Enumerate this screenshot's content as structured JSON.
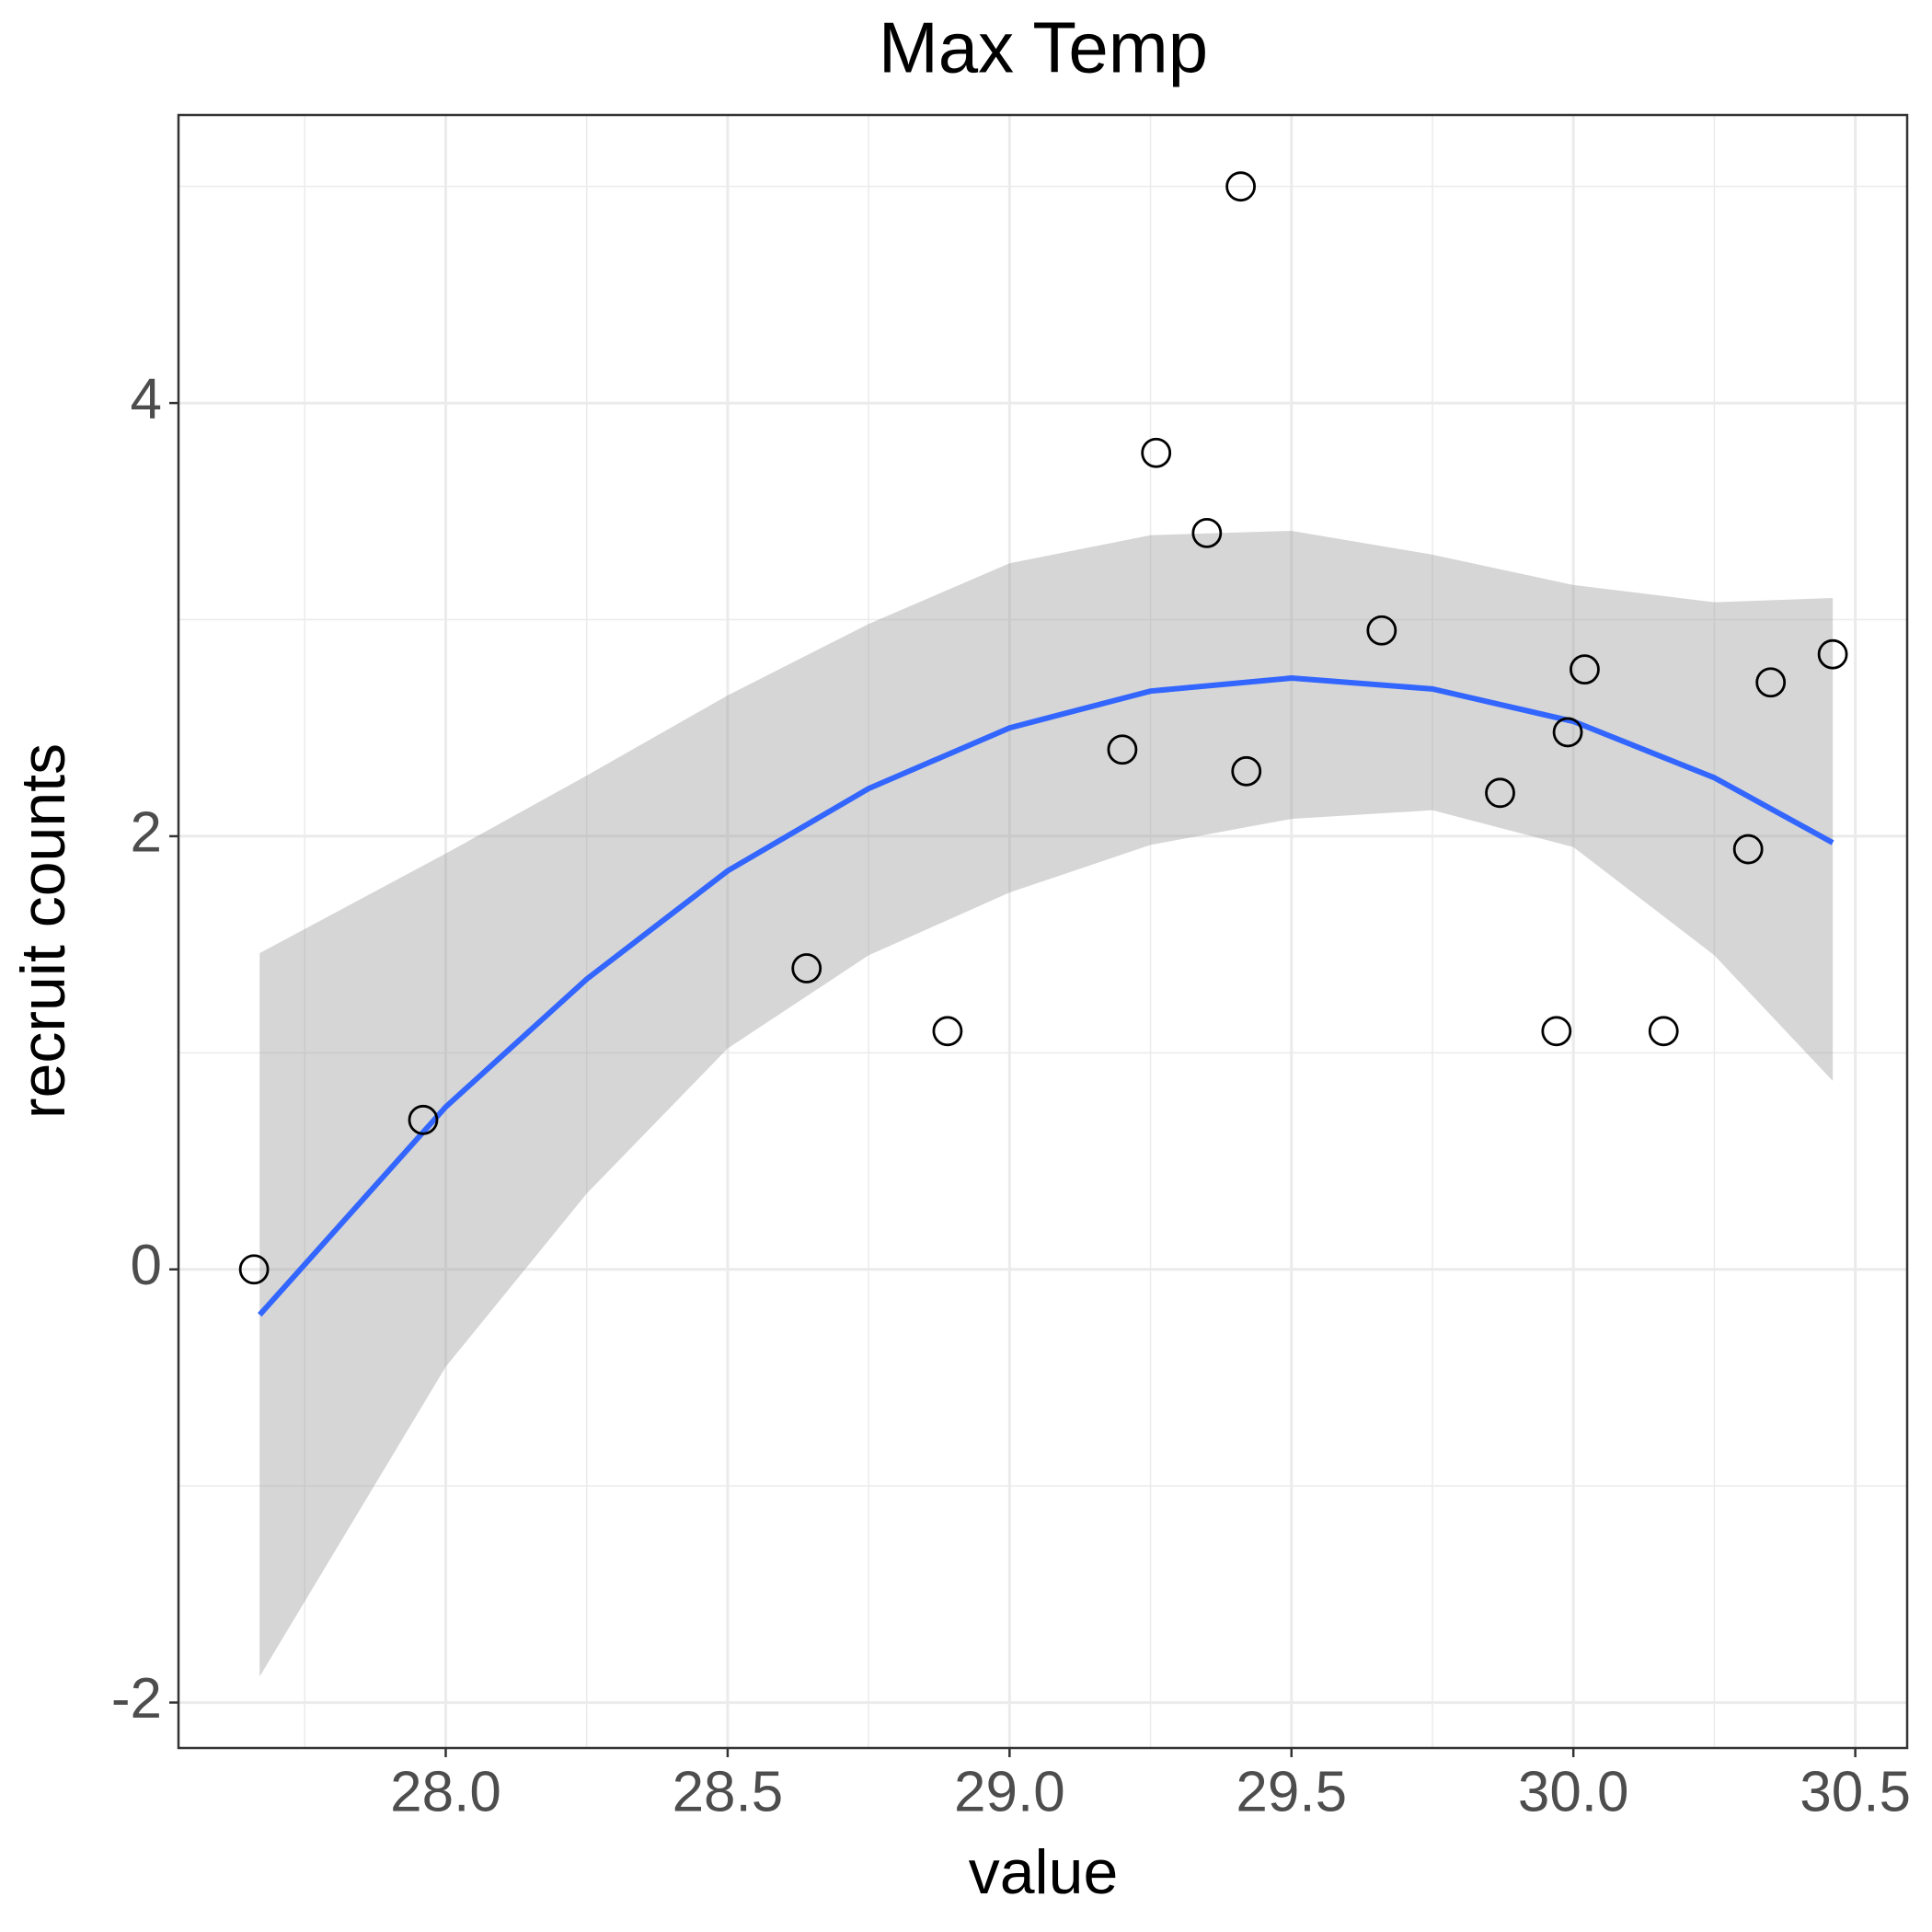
{
  "chart_data": {
    "type": "scatter",
    "title": "Max Temp",
    "xlabel": "value",
    "ylabel": "recruit counts",
    "x": [
      27.66,
      27.96,
      28.64,
      28.89,
      29.2,
      29.26,
      29.35,
      29.41,
      29.42,
      29.66,
      29.87,
      29.97,
      29.99,
      30.02,
      30.16,
      30.31,
      30.35,
      30.46
    ],
    "y": [
      0,
      0.69,
      1.39,
      1.1,
      2.4,
      3.77,
      3.4,
      5,
      2.3,
      2.95,
      2.2,
      1.1,
      2.48,
      2.77,
      1.1,
      1.94,
      2.71,
      2.84
    ],
    "point_color": "#000000",
    "smooth": {
      "color": "#3366ff",
      "band_color": "#999999",
      "x": [
        27.67,
        28.0,
        28.25,
        28.5,
        28.75,
        29.0,
        29.25,
        29.5,
        29.75,
        30.0,
        30.25,
        30.46
      ],
      "y": [
        -0.21,
        0.75,
        1.34,
        1.84,
        2.22,
        2.5,
        2.67,
        2.73,
        2.68,
        2.53,
        2.27,
        1.97
      ],
      "ymin": [
        -1.88,
        -0.45,
        0.35,
        1.02,
        1.45,
        1.74,
        1.96,
        2.08,
        2.12,
        1.95,
        1.45,
        0.87
      ],
      "ymax": [
        1.46,
        1.92,
        2.28,
        2.65,
        2.98,
        3.26,
        3.39,
        3.41,
        3.3,
        3.16,
        3.08,
        3.1
      ]
    },
    "xlim": [
      27.526,
      30.592
    ],
    "ylim": [
      -2.21,
      5.33
    ],
    "xticks": [
      {
        "value": 28,
        "label": "28.0"
      },
      28.5,
      {
        "value": 29,
        "label": "29.0"
      },
      29.5,
      {
        "value": 30,
        "label": "30.0"
      },
      30.5
    ],
    "yticks": [
      -2,
      0,
      2,
      4
    ],
    "x_minor_grid": [
      27.75,
      28.25,
      28.75,
      29.25,
      29.75,
      30.25
    ],
    "y_minor_grid": [
      -1,
      1,
      3,
      5
    ],
    "grid": true
  }
}
